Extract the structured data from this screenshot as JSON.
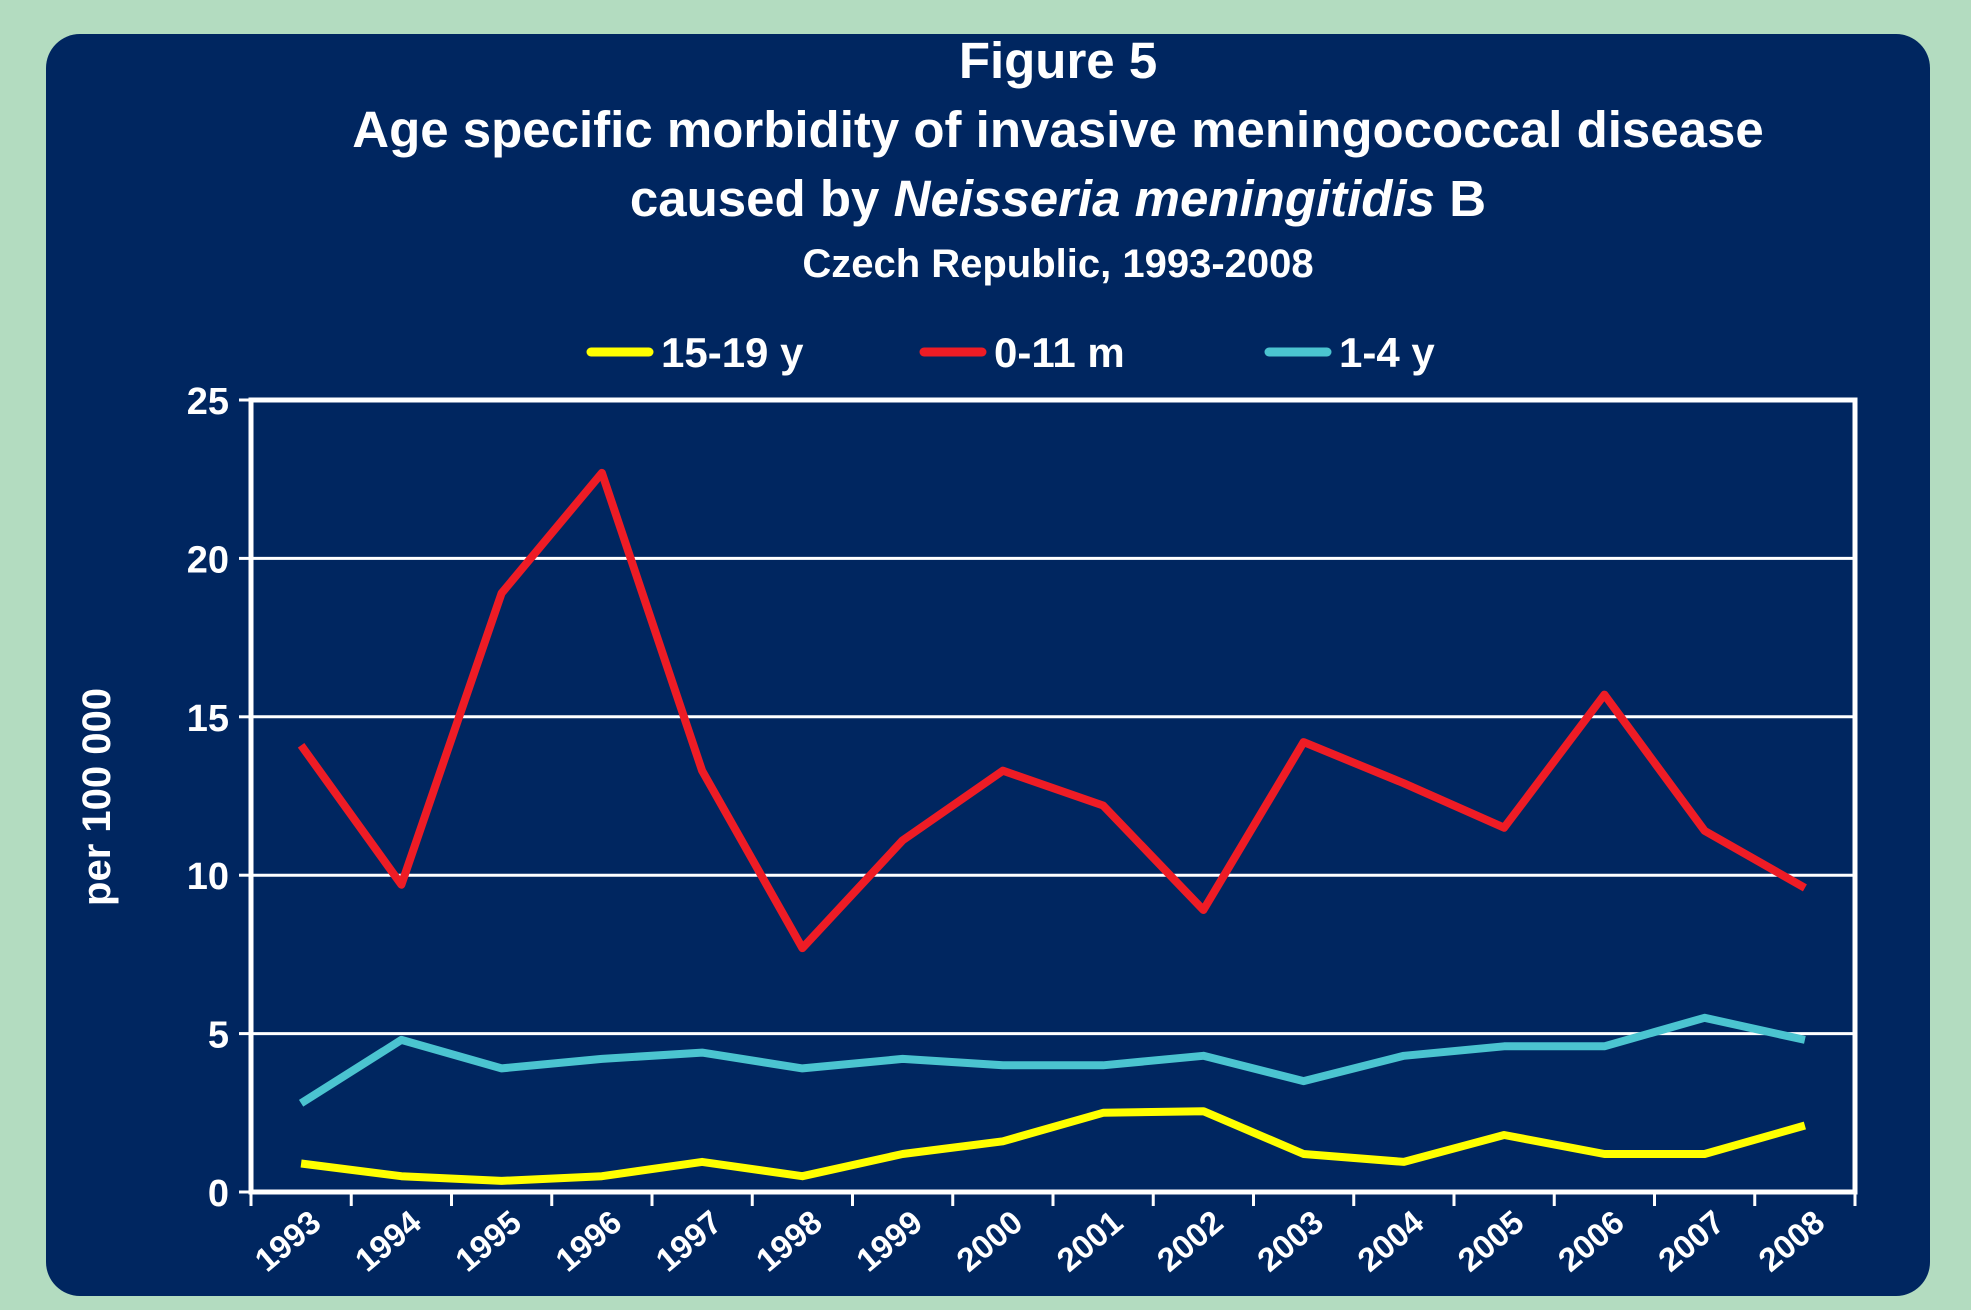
{
  "chart_data": {
    "type": "line",
    "title": [
      "Figure 5",
      "Age specific morbidity of invasive meningococcal disease"
    ],
    "title_parts": [
      "caused by",
      "Neisseria meningitidis",
      "B"
    ],
    "subtitle": "Czech Republic, 1993-2008",
    "y_label": "per 100 000",
    "categories": [
      "1993",
      "1994",
      "1995",
      "1996",
      "1997",
      "1998",
      "1999",
      "2000",
      "2001",
      "2002",
      "2003",
      "2004",
      "2005",
      "2006",
      "2007",
      "2008"
    ],
    "series": [
      {
        "name": "15-19 y",
        "color": "#ffff00",
        "values": [
          0.9,
          0.5,
          0.35,
          0.5,
          0.95,
          0.5,
          1.2,
          1.6,
          2.5,
          2.55,
          1.2,
          0.95,
          1.8,
          1.2,
          1.2,
          2.1
        ]
      },
      {
        "name": "0-11 m",
        "color": "#ee1c25",
        "values": [
          14.1,
          9.7,
          18.9,
          22.7,
          13.3,
          7.7,
          11.1,
          13.3,
          12.2,
          8.9,
          14.2,
          12.9,
          11.5,
          15.7,
          11.4,
          9.6
        ]
      },
      {
        "name": "1-4 y",
        "color": "#4bc4d0",
        "values": [
          2.8,
          4.8,
          3.9,
          4.2,
          4.4,
          3.9,
          4.2,
          4.0,
          4.0,
          4.3,
          3.5,
          4.3,
          4.6,
          4.6,
          5.5,
          4.8
        ]
      }
    ],
    "ylim": [
      0,
      25
    ],
    "yticks": [
      0,
      5,
      10,
      15,
      20,
      25
    ],
    "grid": true,
    "legend": "top"
  }
}
